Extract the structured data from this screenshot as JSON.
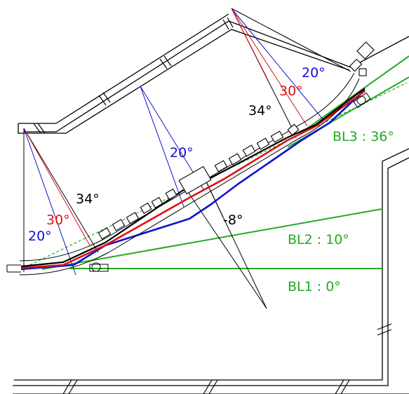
{
  "colors": {
    "black": "#000000",
    "red": "#dd1111",
    "blue": "#1111cc",
    "green": "#22aa22",
    "background": "#ffffff"
  },
  "labels": {
    "left_34": "34°",
    "left_30": "30°",
    "left_20": "20°",
    "mid_20": "20°",
    "mid_minus8": "-8°",
    "right_34": "34°",
    "right_30": "30°",
    "right_20": "20°",
    "bl1": "BL1 : 0°",
    "bl2": "BL2 : 10°",
    "bl3": "BL3 : 36°"
  }
}
